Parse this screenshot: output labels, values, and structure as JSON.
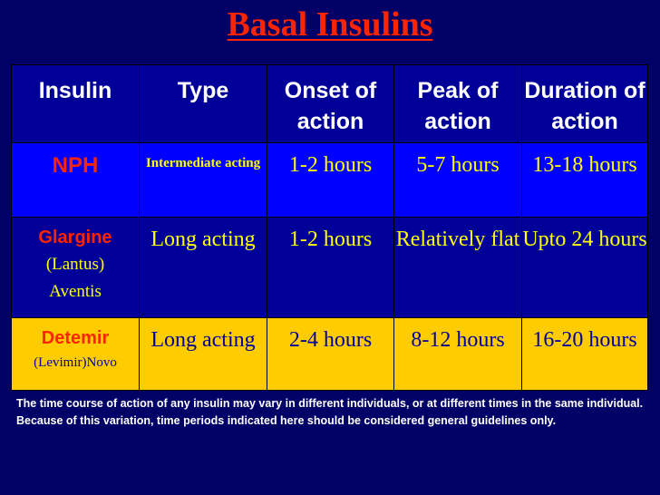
{
  "title": "Basal Insulins",
  "headers": [
    "Insulin",
    "Type",
    "Onset of action",
    "Peak of action",
    "Duration of action"
  ],
  "rows": [
    {
      "name": "NPH",
      "name_sub1": "",
      "name_sub2": "",
      "type": "Intermediate acting",
      "onset": "1-2 hours",
      "peak": "5-7 hours",
      "duration": "13-18 hours"
    },
    {
      "name": "Glargine",
      "name_sub1": "(Lantus)",
      "name_sub2": "Aventis",
      "type": "Long acting",
      "onset": "1-2 hours",
      "peak": "Relatively flat",
      "duration": "Upto 24 hours"
    },
    {
      "name": "Detemir",
      "name_sub1": "(Levimir)Novo",
      "name_sub2": "",
      "type": "Long acting",
      "onset": "2-4 hours",
      "peak": "8-12 hours",
      "duration": "16-20 hours"
    }
  ],
  "footnote": "The time course of action of any insulin may vary in different individuals, or at different times in the same individual. Because of this variation, time periods indicated here should be considered general guidelines only.",
  "colors": {
    "background": "#000066",
    "title": "#ff2400",
    "header_bg": "#000099",
    "row1_bg": "#0000ff",
    "row2_bg": "#000099",
    "row3_bg": "#ffcc00",
    "highlight_text": "#ffff00",
    "dark_text": "#000099",
    "insulin_name": "#ff2400"
  }
}
